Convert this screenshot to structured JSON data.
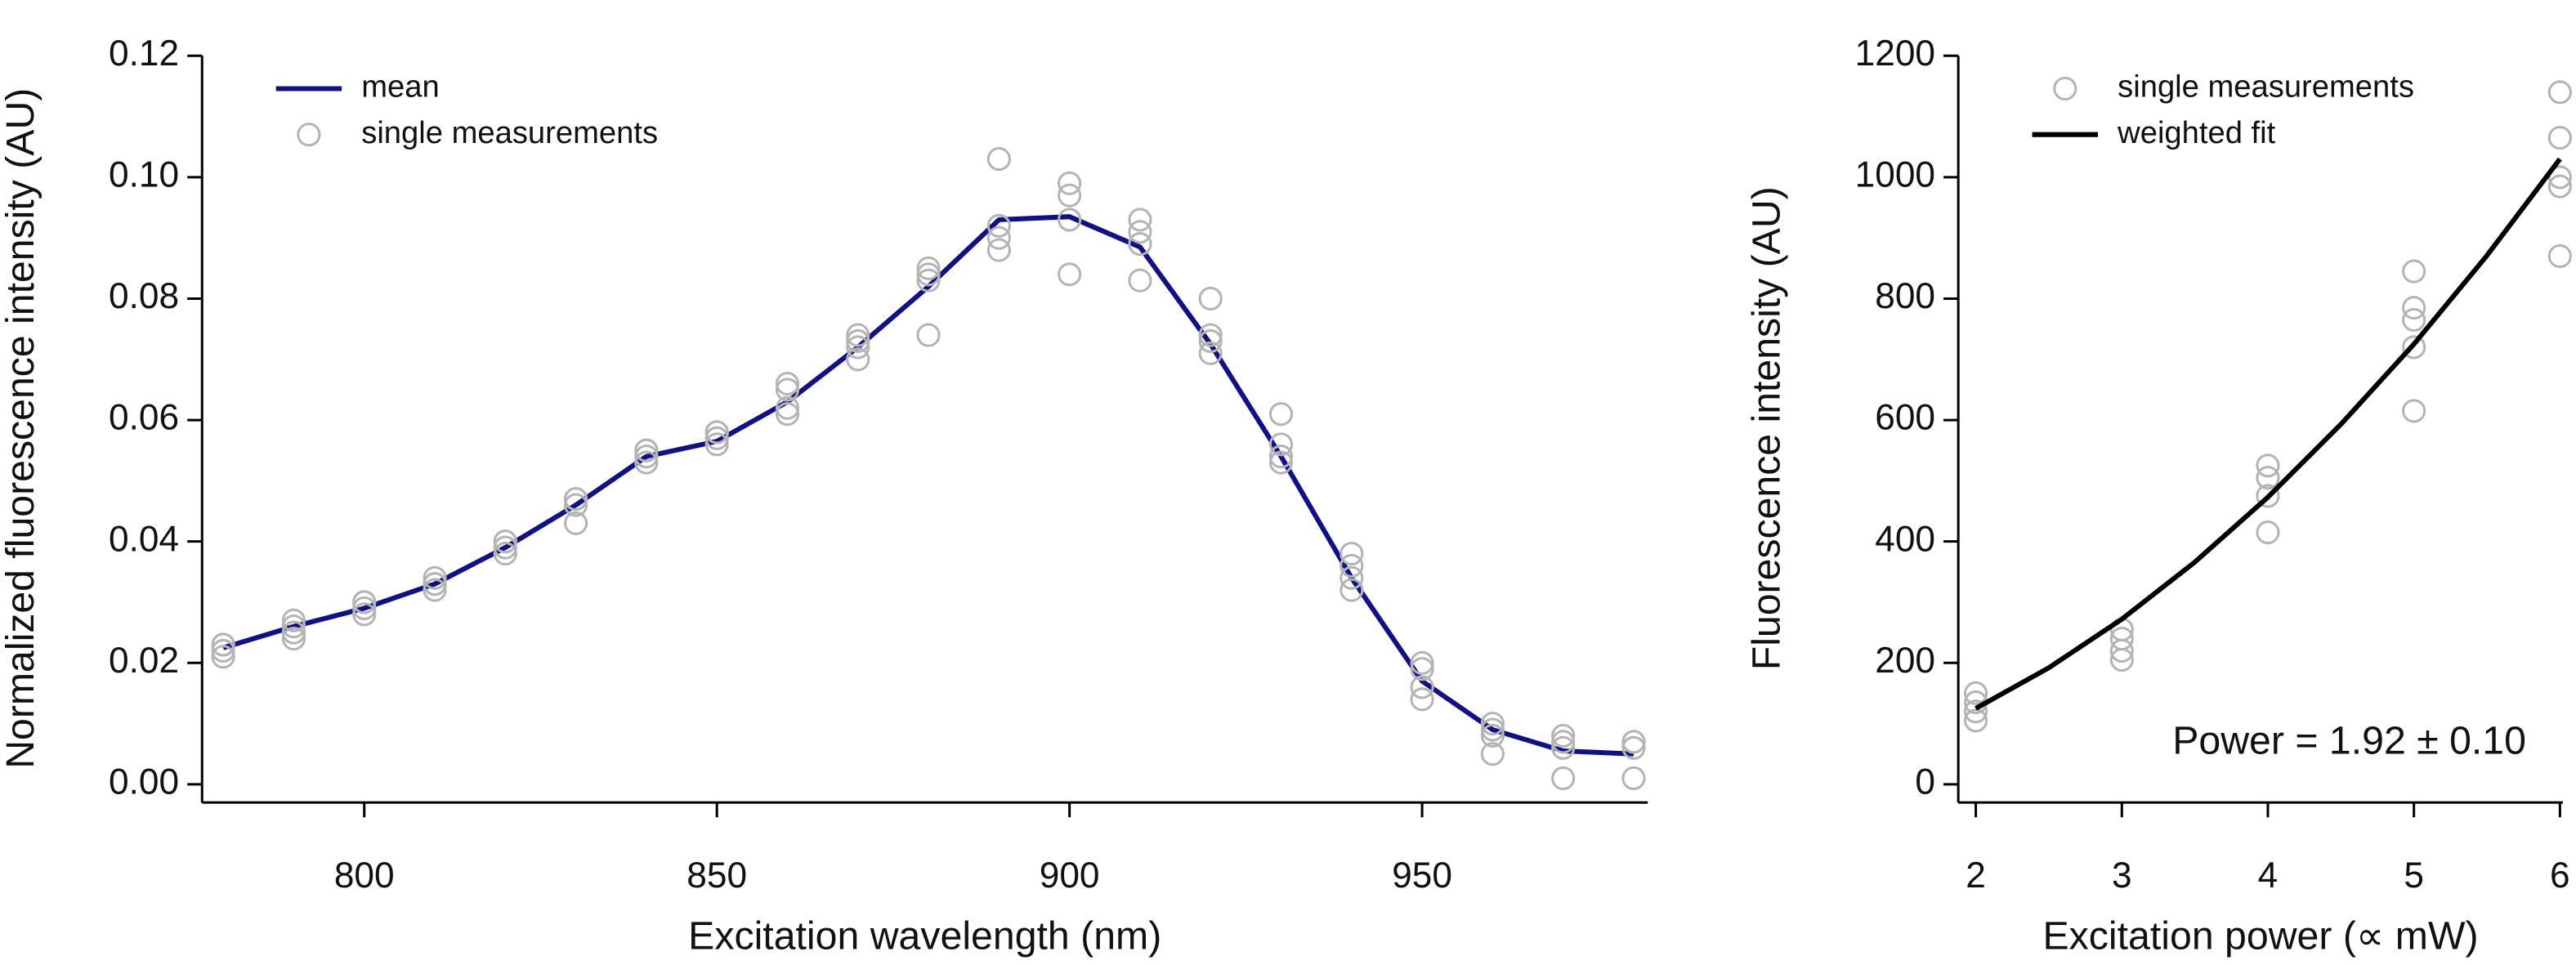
{
  "chart_data": [
    {
      "type": "combo",
      "xlabel": "Excitation wavelength (nm)",
      "ylabel": "Normalized fluorescence intensity (AU)",
      "xlim": [
        777,
        982
      ],
      "ylim": [
        -0.003,
        0.12
      ],
      "xticks": [
        800,
        850,
        900,
        950
      ],
      "yticks": [
        {
          "value": 0,
          "label": "0.00"
        },
        0.02,
        0.04,
        0.06,
        0.08,
        {
          "value": 0.1,
          "label": "0.10"
        },
        0.12
      ],
      "legend": "upper left",
      "series": [
        {
          "name": "mean",
          "type": "line",
          "color": "#10108a",
          "x": [
            780,
            790,
            800,
            810,
            820,
            830,
            840,
            850,
            860,
            870,
            880,
            890,
            900,
            910,
            920,
            930,
            940,
            950,
            960,
            970,
            980
          ],
          "values": [
            0.0225,
            0.026,
            0.029,
            0.033,
            0.039,
            0.046,
            0.054,
            0.0565,
            0.063,
            0.072,
            0.082,
            0.093,
            0.0935,
            0.0885,
            0.0725,
            0.054,
            0.034,
            0.017,
            0.009,
            0.0055,
            0.005
          ]
        },
        {
          "name": "single measurements",
          "type": "scatter",
          "color": "#b4b4b4",
          "x": [
            780,
            780,
            780,
            780,
            790,
            790,
            790,
            790,
            800,
            800,
            800,
            800,
            810,
            810,
            810,
            810,
            820,
            820,
            820,
            820,
            830,
            830,
            830,
            830,
            840,
            840,
            840,
            840,
            850,
            850,
            850,
            850,
            860,
            860,
            860,
            860,
            870,
            870,
            870,
            870,
            880,
            880,
            880,
            880,
            890,
            890,
            890,
            890,
            900,
            900,
            900,
            900,
            910,
            910,
            910,
            910,
            920,
            920,
            920,
            920,
            930,
            930,
            930,
            930,
            940,
            940,
            940,
            940,
            950,
            950,
            950,
            950,
            960,
            960,
            960,
            960,
            970,
            970,
            970,
            970,
            980,
            980,
            980,
            980
          ],
          "values": [
            0.021,
            0.022,
            0.023,
            0.023,
            0.024,
            0.025,
            0.026,
            0.027,
            0.028,
            0.029,
            0.03,
            0.03,
            0.032,
            0.033,
            0.033,
            0.034,
            0.038,
            0.039,
            0.04,
            0.04,
            0.043,
            0.046,
            0.047,
            0.047,
            0.053,
            0.054,
            0.055,
            0.055,
            0.056,
            0.057,
            0.058,
            0.058,
            0.061,
            0.062,
            0.065,
            0.066,
            0.07,
            0.072,
            0.073,
            0.074,
            0.074,
            0.083,
            0.084,
            0.085,
            0.088,
            0.09,
            0.092,
            0.103,
            0.084,
            0.093,
            0.097,
            0.099,
            0.083,
            0.089,
            0.091,
            0.093,
            0.071,
            0.073,
            0.074,
            0.08,
            0.053,
            0.054,
            0.056,
            0.061,
            0.032,
            0.034,
            0.036,
            0.038,
            0.014,
            0.016,
            0.019,
            0.02,
            0.005,
            0.008,
            0.009,
            0.01,
            0.001,
            0.006,
            0.007,
            0.008,
            0.001,
            0.006,
            0.007,
            0.007
          ]
        }
      ]
    },
    {
      "type": "combo",
      "xlabel": "Excitation power (∝ mW)",
      "ylabel": "Fluorescence intensity (AU)",
      "xlim": [
        1.88,
        6.02
      ],
      "ylim": [
        -30,
        1200
      ],
      "xticks": [
        2,
        3,
        4,
        5,
        6
      ],
      "yticks": [
        0,
        200,
        400,
        600,
        800,
        1000,
        1200
      ],
      "legend": "upper left",
      "annotation": "Power = 1.92 ± 0.10",
      "series": [
        {
          "name": "single measurements",
          "type": "scatter",
          "color": "#b4b4b4",
          "x": [
            2,
            2,
            2,
            2,
            3,
            3,
            3,
            3,
            4,
            4,
            4,
            4,
            5,
            5,
            5,
            5,
            5,
            6,
            6,
            6,
            6,
            6
          ],
          "values": [
            105,
            120,
            135,
            150,
            205,
            220,
            240,
            255,
            415,
            475,
            505,
            525,
            615,
            720,
            765,
            785,
            845,
            870,
            985,
            1000,
            1065,
            1140
          ]
        },
        {
          "name": "weighted fit",
          "type": "line",
          "color": "#000000",
          "x": [
            2,
            2.5,
            3,
            3.5,
            4,
            4.5,
            5,
            5.5,
            6
          ],
          "values": [
            125,
            192,
            272,
            366,
            473,
            593,
            725,
            871,
            1030
          ]
        }
      ]
    }
  ]
}
